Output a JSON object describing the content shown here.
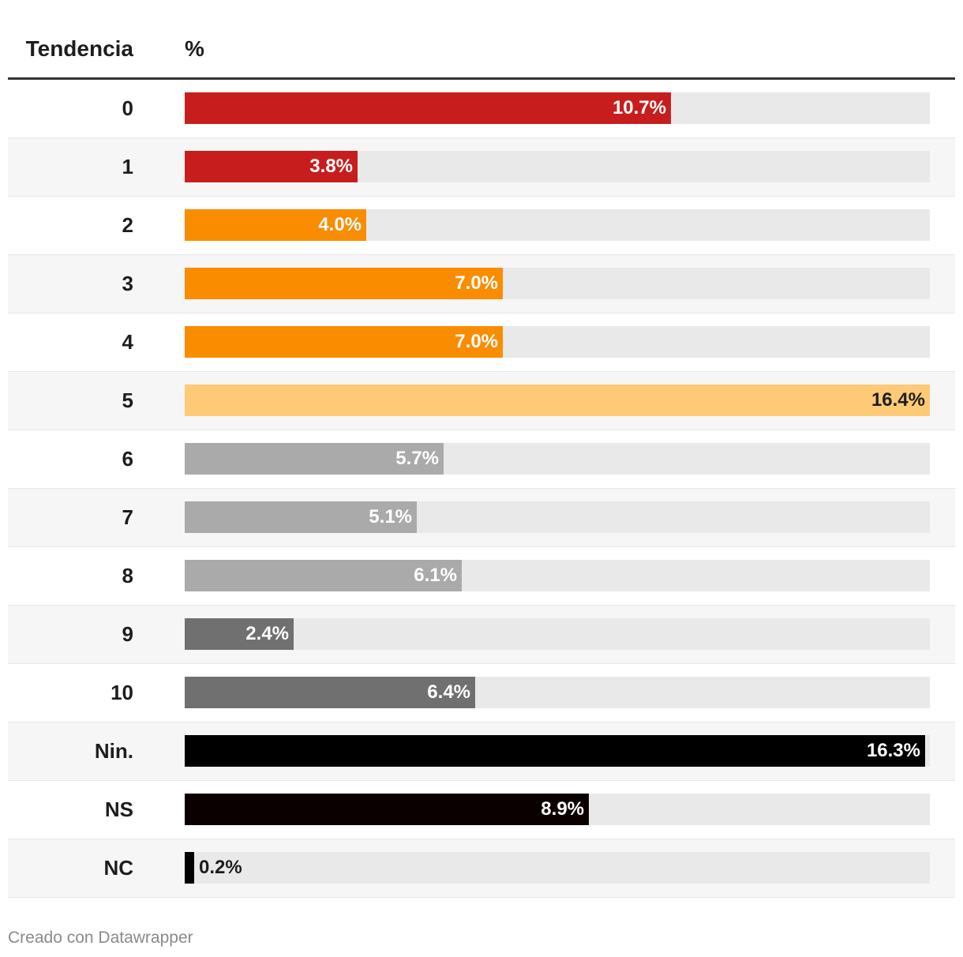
{
  "header": {
    "category_label": "Tendencia",
    "value_label": "%"
  },
  "chart_data": {
    "type": "bar",
    "orientation": "horizontal",
    "title": "",
    "xlabel": "%",
    "ylabel": "Tendencia",
    "xlim": [
      0,
      16.4
    ],
    "categories": [
      "0",
      "1",
      "2",
      "3",
      "4",
      "5",
      "6",
      "7",
      "8",
      "9",
      "10",
      "Nin.",
      "NS",
      "NC"
    ],
    "values": [
      10.7,
      3.8,
      4.0,
      7.0,
      7.0,
      16.4,
      5.7,
      5.1,
      6.1,
      2.4,
      6.4,
      16.3,
      8.9,
      0.2
    ],
    "value_labels": [
      "10.7%",
      "3.8%",
      "4.0%",
      "7.0%",
      "7.0%",
      "16.4%",
      "5.7%",
      "5.1%",
      "6.1%",
      "2.4%",
      "6.4%",
      "16.3%",
      "8.9%",
      "0.2%"
    ],
    "colors": [
      "#c71e1d",
      "#c71e1d",
      "#fa8c00",
      "#fa8c00",
      "#fa8c00",
      "#ffca76",
      "#aaaaaa",
      "#aaaaaa",
      "#aaaaaa",
      "#707070",
      "#707070",
      "#000000",
      "#0a0000",
      "#000000"
    ],
    "label_dark": [
      false,
      false,
      false,
      false,
      false,
      true,
      false,
      false,
      false,
      false,
      false,
      false,
      false,
      false
    ]
  },
  "footer": {
    "credit": "Creado con Datawrapper"
  }
}
